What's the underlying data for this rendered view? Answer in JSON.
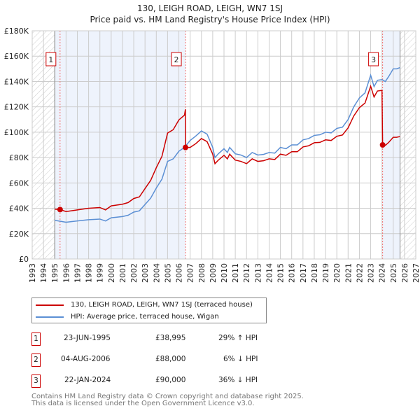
{
  "title": "130, LEIGH ROAD, LEIGH, WN7 1SJ",
  "subtitle": "Price paid vs. HM Land Registry's House Price Index (HPI)",
  "chart_data": {
    "type": "line",
    "ylim": [
      0,
      180000
    ],
    "xlim": [
      1993,
      2027
    ],
    "y_ticks": [
      {
        "v": 0,
        "label": "£0"
      },
      {
        "v": 20000,
        "label": "£20K"
      },
      {
        "v": 40000,
        "label": "£40K"
      },
      {
        "v": 60000,
        "label": "£60K"
      },
      {
        "v": 80000,
        "label": "£80K"
      },
      {
        "v": 100000,
        "label": "£100K"
      },
      {
        "v": 120000,
        "label": "£120K"
      },
      {
        "v": 140000,
        "label": "£140K"
      },
      {
        "v": 160000,
        "label": "£160K"
      },
      {
        "v": 180000,
        "label": "£180K"
      }
    ],
    "x_ticks": [
      "1993",
      "1994",
      "1995",
      "1996",
      "1997",
      "1998",
      "1999",
      "2000",
      "2001",
      "2002",
      "2003",
      "2004",
      "2005",
      "2006",
      "2007",
      "2008",
      "2009",
      "2010",
      "2011",
      "2012",
      "2013",
      "2014",
      "2015",
      "2016",
      "2017",
      "2018",
      "2019",
      "2020",
      "2021",
      "2022",
      "2023",
      "2024",
      "2025",
      "2026",
      "2027"
    ],
    "grid": true,
    "shaded_ranges": [
      [
        1995.0,
        2006.6
      ],
      [
        2024.06,
        2025.6
      ]
    ],
    "hatched_ranges": [
      [
        1993,
        1995.0
      ],
      [
        2025.6,
        2027
      ]
    ],
    "series": [
      {
        "name": "130, LEIGH ROAD, LEIGH, WN7 1SJ (terraced house)",
        "color": "#cc0000",
        "x": [
          1995.0,
          1995.47,
          1996,
          1997,
          1998,
          1999,
          1999.5,
          2000,
          2001,
          2001.5,
          2002,
          2002.5,
          2003,
          2003.5,
          2004,
          2004.5,
          2005,
          2005.5,
          2006,
          2006.5,
          2006.58,
          2006.6,
          2007,
          2007.5,
          2008,
          2008.5,
          2009,
          2009.2,
          2009.5,
          2010,
          2010.3,
          2010.5,
          2011,
          2011.5,
          2012,
          2012.5,
          2013,
          2013.5,
          2014,
          2014.5,
          2015,
          2015.5,
          2016,
          2016.5,
          2017,
          2017.5,
          2018,
          2018.5,
          2019,
          2019.5,
          2020,
          2020.5,
          2021,
          2021.5,
          2022,
          2022.5,
          2023,
          2023.3,
          2023.6,
          2024.0,
          2024.06,
          2024.3,
          2024.6,
          2025,
          2025.3,
          2025.6
        ],
        "y": [
          39300,
          38995,
          37400,
          38700,
          40000,
          40600,
          38700,
          41900,
          43200,
          44500,
          47700,
          49000,
          55500,
          62000,
          72000,
          81000,
          99300,
          102000,
          109700,
          113500,
          118000,
          88000,
          88000,
          91000,
          95000,
          92600,
          82700,
          75200,
          78000,
          81800,
          79000,
          82700,
          78000,
          77000,
          75200,
          79000,
          77000,
          77500,
          79000,
          78500,
          82700,
          81800,
          84600,
          84600,
          88400,
          89300,
          91700,
          92000,
          94000,
          93500,
          96800,
          97800,
          103400,
          112800,
          119400,
          123000,
          136300,
          127800,
          132500,
          133000,
          90000,
          89600,
          92000,
          96000,
          96000,
          96600
        ]
      },
      {
        "name": "HPI: Average price, terraced house, Wigan",
        "color": "#5b8fd4",
        "x": [
          1995.0,
          1996,
          1997,
          1998,
          1999,
          1999.5,
          2000,
          2001,
          2001.5,
          2002,
          2002.5,
          2003,
          2003.5,
          2004,
          2004.5,
          2005,
          2005.5,
          2006,
          2006.5,
          2007,
          2007.5,
          2008,
          2008.5,
          2009,
          2009.2,
          2009.5,
          2010,
          2010.3,
          2010.5,
          2011,
          2011.5,
          2012,
          2012.5,
          2013,
          2013.5,
          2014,
          2014.5,
          2015,
          2015.5,
          2016,
          2016.5,
          2017,
          2017.5,
          2018,
          2018.5,
          2019,
          2019.5,
          2020,
          2020.5,
          2021,
          2021.5,
          2022,
          2022.5,
          2023,
          2023.3,
          2023.6,
          2024,
          2024.3,
          2024.6,
          2025,
          2025.3,
          2025.6
        ],
        "y": [
          30500,
          29000,
          30000,
          31000,
          31500,
          30000,
          32500,
          33500,
          34500,
          37000,
          38000,
          43000,
          48000,
          56000,
          63000,
          77000,
          79000,
          85000,
          88000,
          93500,
          97000,
          101000,
          98500,
          88000,
          80000,
          83000,
          87000,
          84000,
          88000,
          83000,
          82000,
          80000,
          84000,
          82000,
          82500,
          84000,
          83500,
          88000,
          87000,
          90000,
          90000,
          94000,
          95000,
          97500,
          98000,
          100000,
          99500,
          103000,
          104000,
          110000,
          120000,
          127000,
          131000,
          145000,
          136000,
          141000,
          141500,
          140000,
          144000,
          150000,
          150000,
          151000
        ]
      }
    ],
    "sales": [
      {
        "n": "1",
        "x": 1995.47,
        "y": 38995
      },
      {
        "n": "2",
        "x": 2006.59,
        "y": 88000
      },
      {
        "n": "3",
        "x": 2024.06,
        "y": 90000
      }
    ]
  },
  "legend": [
    "130, LEIGH ROAD, LEIGH, WN7 1SJ (terraced house)",
    "HPI: Average price, terraced house, Wigan"
  ],
  "transactions": [
    {
      "n": "1",
      "date": "23-JUN-1995",
      "price": "£38,995",
      "hpi": "29% ↑ HPI"
    },
    {
      "n": "2",
      "date": "04-AUG-2006",
      "price": "£88,000",
      "hpi": "6% ↓ HPI"
    },
    {
      "n": "3",
      "date": "22-JAN-2024",
      "price": "£90,000",
      "hpi": "36% ↓ HPI"
    }
  ],
  "footer": [
    "Contains HM Land Registry data © Crown copyright and database right 2025.",
    "This data is licensed under the Open Government Licence v3.0."
  ]
}
